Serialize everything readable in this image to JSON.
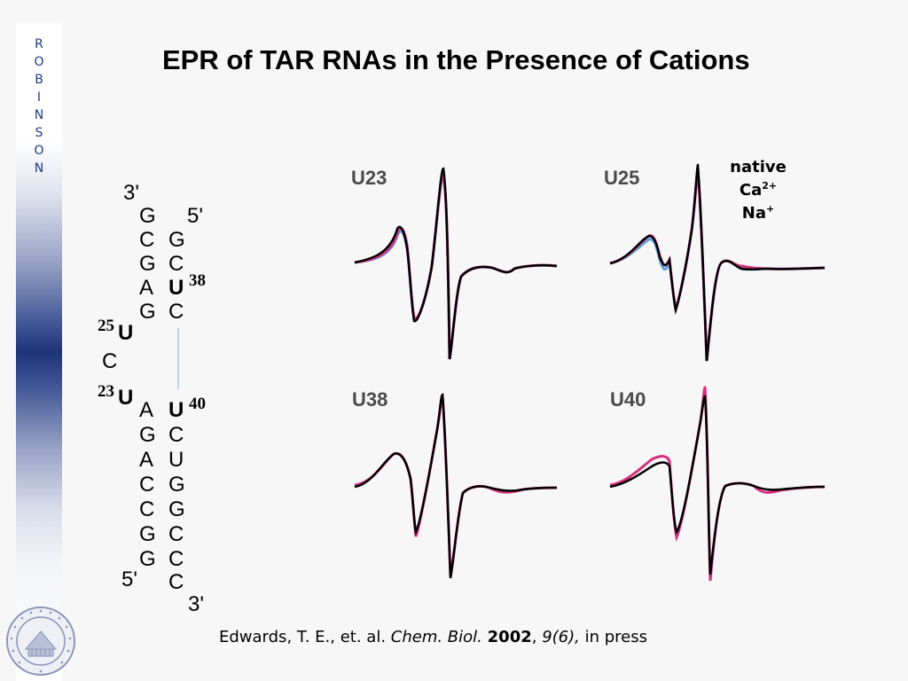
{
  "sidebar": {
    "letters": [
      "R",
      "O",
      "B",
      "I",
      "N",
      "S",
      "O",
      "N"
    ]
  },
  "title": "EPR of TAR RNAs in the Presence of Cations",
  "rna": {
    "top_end": "3'",
    "top_right_end": "5'",
    "left_strand_upper": [
      "G",
      "C",
      "G",
      "A",
      "G"
    ],
    "right_strand_upper": [
      "G",
      "C",
      "U",
      "C"
    ],
    "bulge_positions": [
      "25",
      "23"
    ],
    "bulge_bases": [
      "U",
      "C",
      "U"
    ],
    "left_strand_lower": [
      "A",
      "G",
      "A",
      "C",
      "C",
      "G",
      "G"
    ],
    "right_strand_lower": [
      "U",
      "C",
      "U",
      "G",
      "G",
      "C",
      "C",
      "C"
    ],
    "bottom_left_end": "5'",
    "bottom_right_end": "3'",
    "labels": {
      "u38": "38",
      "u40": "40"
    }
  },
  "panels": {
    "u23": "U23",
    "u25": "U25",
    "u38": "U38",
    "u40": "U40"
  },
  "legend": {
    "native": "native",
    "ca_base": "Ca",
    "ca_sup": "2+",
    "na_base": "Na",
    "na_sup": "+"
  },
  "series_colors": {
    "native": "#000000",
    "ca": "#d6307e",
    "na": "#5aa0dc"
  },
  "citation": {
    "authors": "Edwards, T. E., et. al. ",
    "journal": "Chem. Biol.",
    "year": "2002",
    "volume": "9(6),",
    "status": " in press"
  }
}
